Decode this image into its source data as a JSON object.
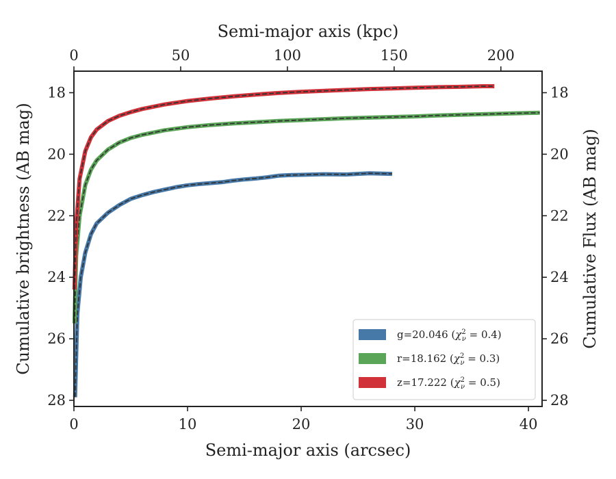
{
  "chart_data": {
    "type": "line",
    "xlabel": "Semi-major axis (arcsec)",
    "x2label": "Semi-major axis (kpc)",
    "ylabel": "Cumulative brightness (AB mag)",
    "y2label": "Cumulative Flux (AB mag)",
    "xlim": [
      0,
      41.2
    ],
    "x2lim": [
      0,
      219.3
    ],
    "ylim": [
      28.2,
      17.3
    ],
    "y_inverted": true,
    "xticks": [
      "0",
      "10",
      "20",
      "30",
      "40"
    ],
    "x2ticks": [
      "0",
      "50",
      "100",
      "150",
      "200"
    ],
    "yticks": [
      "18",
      "20",
      "22",
      "24",
      "26",
      "28"
    ],
    "grid": false,
    "legend_position": "lower-right",
    "series": [
      {
        "name": "g=20.046 (χ²ν = 0.4)",
        "label_main": "g=20.046 (",
        "label_chi": "χ",
        "label_sup": "2",
        "label_sub": "ν",
        "label_tail": " = 0.4)",
        "color": "#4678a8",
        "x": [
          0.1,
          0.3,
          0.6,
          1.0,
          1.5,
          2.0,
          3.0,
          4.0,
          5.0,
          6.0,
          7.0,
          8.0,
          9.0,
          10.0,
          11.0,
          12.0,
          13.0,
          14.0,
          15.0,
          16.0,
          17.0,
          18.0,
          19.0,
          20.0,
          22.0,
          24.0,
          26.0,
          28.0
        ],
        "y": [
          27.9,
          25.2,
          24.0,
          23.2,
          22.6,
          22.25,
          21.9,
          21.65,
          21.45,
          21.33,
          21.23,
          21.15,
          21.07,
          21.01,
          20.97,
          20.94,
          20.91,
          20.86,
          20.82,
          20.79,
          20.75,
          20.7,
          20.68,
          20.67,
          20.65,
          20.66,
          20.62,
          20.64
        ]
      },
      {
        "name": "r=18.162 (χ²ν = 0.3)",
        "label_main": "r=18.162 (",
        "label_chi": "χ",
        "label_sup": "2",
        "label_sub": "ν",
        "label_tail": " = 0.3)",
        "color": "#5aa557",
        "x": [
          0.05,
          0.2,
          0.5,
          1.0,
          1.5,
          2.0,
          3.0,
          4.0,
          5.0,
          6.0,
          8.0,
          10.0,
          12.0,
          14.0,
          16.0,
          18.0,
          20.0,
          22.0,
          24.0,
          26.0,
          28.0,
          30.0,
          32.0,
          34.0,
          36.0,
          38.0,
          40.0,
          41.0
        ],
        "y": [
          25.5,
          23.3,
          22.0,
          21.0,
          20.5,
          20.2,
          19.85,
          19.62,
          19.47,
          19.37,
          19.22,
          19.12,
          19.05,
          19.0,
          18.96,
          18.92,
          18.89,
          18.86,
          18.83,
          18.81,
          18.79,
          18.77,
          18.74,
          18.72,
          18.7,
          18.68,
          18.66,
          18.65
        ]
      },
      {
        "name": "z=17.222 (χ²ν = 0.5)",
        "label_main": "z=17.222 (",
        "label_chi": "χ",
        "label_sup": "2",
        "label_sub": "ν",
        "label_tail": " = 0.5)",
        "color": "#d1323a",
        "x": [
          0.05,
          0.2,
          0.5,
          1.0,
          1.5,
          2.0,
          3.0,
          4.0,
          5.0,
          6.0,
          8.0,
          10.0,
          12.0,
          14.0,
          16.0,
          18.0,
          20.0,
          22.0,
          24.0,
          26.0,
          28.0,
          30.0,
          32.0,
          34.0,
          36.0,
          37.0
        ],
        "y": [
          24.4,
          22.3,
          20.8,
          19.9,
          19.45,
          19.2,
          18.92,
          18.75,
          18.63,
          18.53,
          18.38,
          18.27,
          18.19,
          18.12,
          18.06,
          18.01,
          17.97,
          17.94,
          17.91,
          17.88,
          17.86,
          17.84,
          17.82,
          17.81,
          17.79,
          17.79
        ]
      }
    ]
  }
}
